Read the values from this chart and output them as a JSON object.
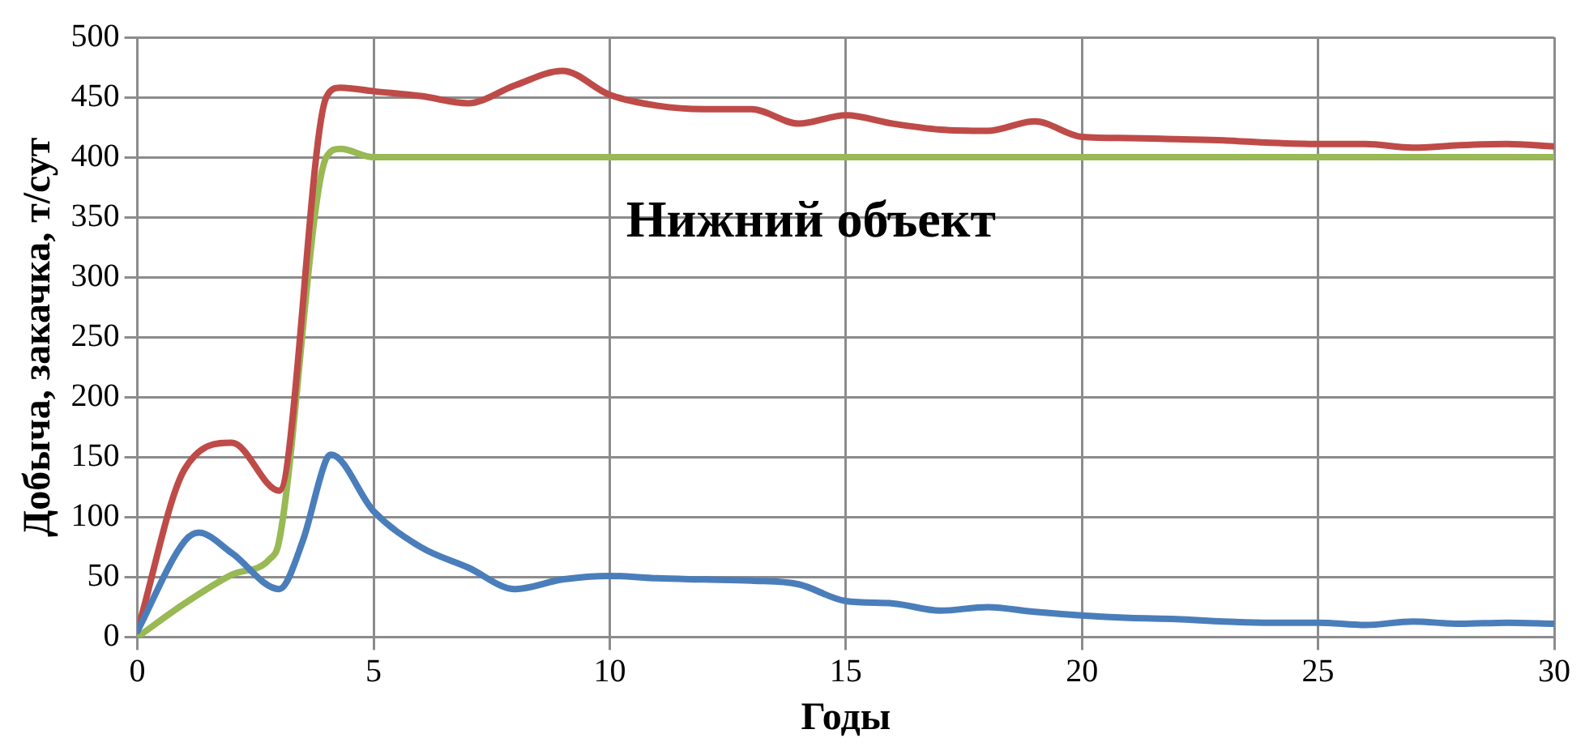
{
  "chart_data": {
    "type": "line",
    "xlabel": "Годы",
    "ylabel": "Добыча, закачка, т/сут",
    "annotations": [
      "Нижний объект"
    ],
    "xlim": [
      0,
      30
    ],
    "xticks": [
      0,
      5,
      10,
      15,
      20,
      25,
      30
    ],
    "ylim": [
      0,
      500
    ],
    "yticks": [
      0,
      50,
      100,
      150,
      200,
      250,
      300,
      350,
      400,
      450,
      500
    ],
    "grid": true,
    "legend": false,
    "series": [
      {
        "color": "#4a7ebb",
        "x": [
          0,
          1,
          1.3,
          2,
          3,
          3.5,
          4,
          4.1,
          5,
          6,
          7,
          8,
          9,
          10,
          11,
          12,
          13,
          14,
          15,
          16,
          17,
          18,
          19,
          20,
          21,
          22,
          23,
          24,
          25,
          26,
          27,
          28,
          29,
          30
        ],
        "values": [
          5,
          80,
          87,
          70,
          40,
          80,
          148,
          152,
          105,
          75,
          58,
          40,
          48,
          51,
          49,
          48,
          47,
          44,
          30,
          28,
          22,
          25,
          21,
          18,
          16,
          15,
          13,
          12,
          12,
          10,
          13,
          11,
          12,
          11
        ]
      },
      {
        "color": "#be4b48",
        "x": [
          0,
          1,
          2,
          3,
          4,
          4.3,
          5,
          6,
          7,
          8,
          9,
          10,
          11,
          12,
          13,
          14,
          15,
          16,
          17,
          18,
          19,
          20,
          21,
          22,
          23,
          24,
          25,
          26,
          27,
          28,
          29,
          30
        ],
        "values": [
          5,
          140,
          162,
          122,
          450,
          458,
          455,
          451,
          445,
          460,
          472,
          452,
          443,
          440,
          440,
          428,
          435,
          428,
          423,
          422,
          430,
          417,
          416,
          415,
          414,
          412,
          411,
          411,
          408,
          410,
          411,
          409
        ]
      },
      {
        "color": "#98b954",
        "x": [
          0,
          1,
          2,
          2.8,
          3,
          4,
          4.3,
          5,
          30
        ],
        "values": [
          0,
          28,
          52,
          65,
          80,
          400,
          407,
          400,
          400
        ]
      }
    ]
  }
}
